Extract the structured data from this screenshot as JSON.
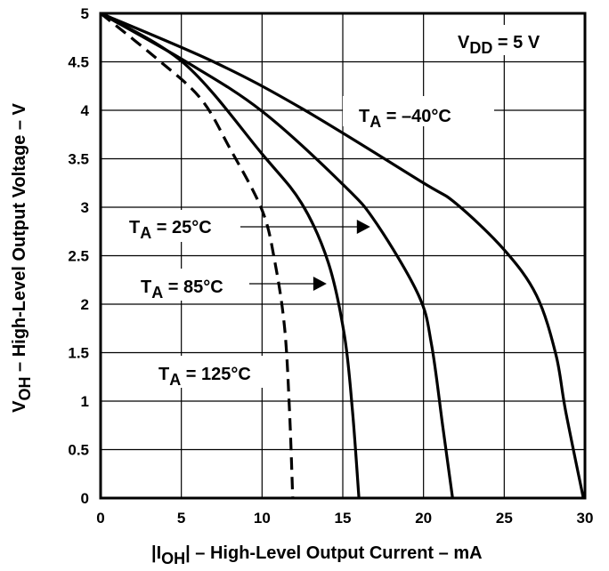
{
  "chart_data": {
    "type": "line",
    "title": "",
    "xlabel_parts": [
      "|I",
      "OH",
      "| – High-Level Output Current – mA"
    ],
    "ylabel_parts": [
      "V",
      "OH",
      " – High-Level Output Voltage – V"
    ],
    "xlim": [
      0,
      30
    ],
    "ylim": [
      0,
      5
    ],
    "xticks": [
      0,
      5,
      10,
      15,
      20,
      25,
      30
    ],
    "yticks": [
      0,
      0.5,
      1,
      1.5,
      2,
      2.5,
      3,
      3.5,
      4,
      4.5,
      5
    ],
    "grid": true,
    "annotation": {
      "parts": [
        "V",
        "DD",
        " = 5 V"
      ]
    },
    "series": [
      {
        "name": "TA = -40°C",
        "label_parts": [
          "T",
          "A",
          " = –40°C"
        ],
        "dashed": false,
        "x": [
          0,
          7,
          12.45,
          19.9,
          22,
          25,
          27,
          28.2,
          28.8,
          29.9
        ],
        "y": [
          5,
          4.5,
          4.02,
          3.26,
          3.04,
          2.56,
          2.09,
          1.48,
          0.9,
          0
        ]
      },
      {
        "name": "TA = 25°C",
        "label_parts": [
          "T",
          "A",
          " = 25°C"
        ],
        "dashed": false,
        "x": [
          0,
          5.2,
          10,
          15.1,
          17.1,
          19.7,
          20.5,
          21.2,
          21.8
        ],
        "y": [
          5,
          4.51,
          3.99,
          3.22,
          2.83,
          2.09,
          1.58,
          0.73,
          0
        ],
        "arrow_to": [
          16.7,
          2.83
        ]
      },
      {
        "name": "TA = 85°C",
        "label_parts": [
          "T",
          "A",
          " = 85°C"
        ],
        "dashed": false,
        "x": [
          0,
          5.2,
          10,
          12.45,
          14.1,
          15.1,
          15.6,
          16
        ],
        "y": [
          5,
          4.48,
          3.55,
          3.04,
          2.43,
          1.68,
          0.9,
          0
        ],
        "arrow_to": [
          14.0,
          2.23
        ]
      },
      {
        "name": "TA = 125°C",
        "label_parts": [
          "T",
          "A",
          " = 125°C"
        ],
        "dashed": true,
        "x": [
          0,
          3.5,
          6.2,
          8,
          10,
          10.8,
          11.4,
          11.7,
          11.9
        ],
        "y": [
          5,
          4.53,
          4.12,
          3.61,
          2.97,
          2.43,
          1.75,
          0.9,
          0
        ]
      }
    ]
  }
}
